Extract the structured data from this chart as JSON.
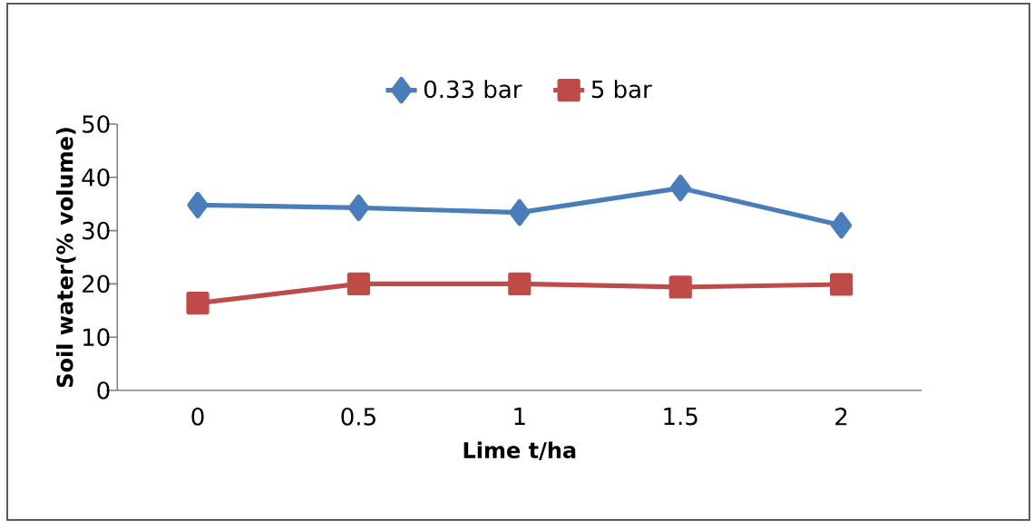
{
  "chart_data": {
    "type": "line",
    "xlabel": "Lime t/ha",
    "ylabel": "Soil water(% volume)",
    "categories": [
      "0",
      "0.5",
      "1",
      "1.5",
      "2"
    ],
    "series": [
      {
        "name": "0.33 bar",
        "color": "#4a7ebb",
        "marker": "diamond",
        "values": [
          34.8,
          34.3,
          33.4,
          38.0,
          31.0
        ]
      },
      {
        "name": "5 bar",
        "color": "#be4b48",
        "marker": "square",
        "values": [
          16.4,
          20.0,
          20.0,
          19.4,
          19.9
        ]
      }
    ],
    "ylim": [
      0,
      50
    ],
    "yticks": [
      0,
      10,
      20,
      30,
      40,
      50
    ],
    "legend": "top",
    "grid": false
  }
}
